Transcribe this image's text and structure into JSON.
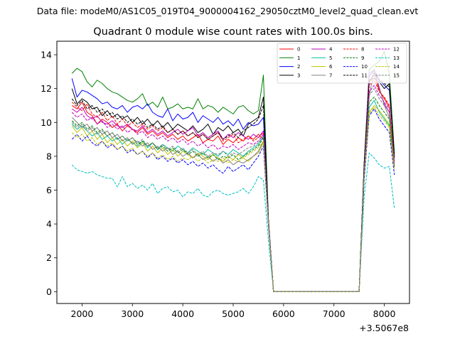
{
  "chart_data": {
    "type": "line",
    "suptitle": "Data file: modeM0/AS1C05_019T04_9000004162_29050cztM0_level2_quad_clean.evt",
    "title": "Quadrant 0 module wise count rates with 100.0s bins.",
    "xlabel": "",
    "ylabel": "",
    "x_offset_label": "+3.5067e8",
    "xlim": [
      1500,
      8500
    ],
    "ylim": [
      -0.7,
      14.8
    ],
    "x_ticks": [
      2000,
      3000,
      4000,
      5000,
      6000,
      7000,
      8000
    ],
    "y_ticks": [
      0,
      2,
      4,
      6,
      8,
      10,
      12,
      14
    ],
    "legend_location": "upper right",
    "x": [
      1800,
      1900,
      2000,
      2100,
      2200,
      2300,
      2400,
      2500,
      2600,
      2700,
      2800,
      2900,
      3000,
      3100,
      3200,
      3300,
      3400,
      3500,
      3600,
      3700,
      3800,
      3900,
      4000,
      4100,
      4200,
      4300,
      4400,
      4500,
      4600,
      4700,
      4800,
      4900,
      5000,
      5100,
      5200,
      5300,
      5400,
      5500,
      5600,
      5700,
      5800,
      5900,
      6000,
      6100,
      6200,
      6300,
      6400,
      6500,
      6600,
      6700,
      6800,
      6900,
      7000,
      7100,
      7200,
      7300,
      7400,
      7500,
      7600,
      7700,
      7800,
      7900,
      8000,
      8100,
      8200
    ],
    "series": [
      {
        "name": "0",
        "color": "#ff0000",
        "dash": "solid",
        "values": [
          11.0,
          10.8,
          11.2,
          10.6,
          10.4,
          9.9,
          10.2,
          10.0,
          9.7,
          9.9,
          9.5,
          9.8,
          9.6,
          9.4,
          9.7,
          9.3,
          9.5,
          9.2,
          9.4,
          9.1,
          9.3,
          9.0,
          9.2,
          8.9,
          9.1,
          9.3,
          8.8,
          9.0,
          8.9,
          9.2,
          8.7,
          9.0,
          8.8,
          9.1,
          8.9,
          9.2,
          9.0,
          9.3,
          9.0,
          4.2,
          0.0,
          0.0,
          0.0,
          0.0,
          0.0,
          0.0,
          0.0,
          0.0,
          0.0,
          0.0,
          0.0,
          0.0,
          0.0,
          0.0,
          0.0,
          0.0,
          0.0,
          0.0,
          7.2,
          12.4,
          12.8,
          11.9,
          11.4,
          10.9,
          7.7
        ]
      },
      {
        "name": "1",
        "color": "#008000",
        "dash": "solid",
        "values": [
          12.9,
          13.2,
          13.0,
          12.4,
          12.1,
          12.5,
          12.3,
          12.0,
          11.8,
          11.7,
          11.5,
          11.3,
          11.2,
          11.4,
          11.7,
          11.0,
          11.2,
          10.9,
          11.5,
          10.8,
          10.9,
          11.1,
          10.8,
          10.9,
          10.8,
          11.4,
          10.8,
          11.0,
          10.9,
          10.6,
          10.9,
          10.7,
          10.5,
          10.9,
          11.0,
          10.7,
          10.5,
          10.7,
          12.8,
          4.2,
          0.0,
          0.0,
          0.0,
          0.0,
          0.0,
          0.0,
          0.0,
          0.0,
          0.0,
          0.0,
          0.0,
          0.0,
          0.0,
          0.0,
          0.0,
          0.0,
          0.0,
          0.0,
          7.6,
          13.1,
          13.4,
          13.6,
          14.2,
          12.9,
          8.2
        ]
      },
      {
        "name": "2",
        "color": "#0000ff",
        "dash": "solid",
        "values": [
          12.6,
          11.5,
          11.9,
          11.8,
          11.6,
          11.4,
          11.1,
          11.2,
          10.9,
          10.8,
          11.0,
          10.6,
          10.9,
          11.0,
          10.8,
          11.1,
          10.6,
          10.4,
          10.3,
          10.8,
          10.1,
          10.5,
          10.2,
          10.3,
          10.6,
          10.0,
          10.4,
          10.2,
          10.0,
          10.3,
          9.9,
          10.1,
          9.8,
          10.2,
          9.6,
          10.0,
          9.8,
          9.9,
          10.3,
          4.1,
          0.0,
          0.0,
          0.0,
          0.0,
          0.0,
          0.0,
          0.0,
          0.0,
          0.0,
          0.0,
          0.0,
          0.0,
          0.0,
          0.0,
          0.0,
          0.0,
          0.0,
          0.0,
          7.4,
          12.7,
          13.1,
          12.5,
          12.2,
          11.9,
          8.0
        ]
      },
      {
        "name": "3",
        "color": "#000000",
        "dash": "solid",
        "values": [
          12.0,
          11.1,
          11.4,
          11.2,
          10.8,
          10.9,
          10.4,
          10.7,
          10.3,
          10.5,
          10.2,
          10.4,
          10.0,
          10.3,
          9.9,
          10.2,
          9.8,
          10.1,
          9.7,
          10.0,
          9.6,
          9.9,
          9.7,
          9.5,
          9.8,
          9.4,
          9.6,
          9.9,
          9.3,
          9.7,
          9.5,
          9.8,
          9.4,
          9.6,
          9.2,
          9.9,
          10.1,
          10.3,
          11.5,
          4.3,
          0.0,
          0.0,
          0.0,
          0.0,
          0.0,
          0.0,
          0.0,
          0.0,
          0.0,
          0.0,
          0.0,
          0.0,
          0.0,
          0.0,
          0.0,
          0.0,
          0.0,
          0.0,
          7.5,
          12.5,
          12.6,
          12.4,
          12.0,
          12.3,
          7.9
        ]
      },
      {
        "name": "4",
        "color": "#bf00bf",
        "dash": "solid",
        "values": [
          10.8,
          10.6,
          10.9,
          10.4,
          10.2,
          10.4,
          10.0,
          9.9,
          10.1,
          9.8,
          9.7,
          9.9,
          9.6,
          9.5,
          9.8,
          9.4,
          9.6,
          9.3,
          9.5,
          9.2,
          9.4,
          9.6,
          9.3,
          9.5,
          9.7,
          9.2,
          9.4,
          9.1,
          9.3,
          9.5,
          9.0,
          9.3,
          9.1,
          9.4,
          9.2,
          9.0,
          9.3,
          9.1,
          9.5,
          4.2,
          0.0,
          0.0,
          0.0,
          0.0,
          0.0,
          0.0,
          0.0,
          0.0,
          0.0,
          0.0,
          0.0,
          0.0,
          0.0,
          0.0,
          0.0,
          0.0,
          0.0,
          0.0,
          7.1,
          12.9,
          13.1,
          12.0,
          11.1,
          10.6,
          7.8
        ]
      },
      {
        "name": "5",
        "color": "#00bfa0",
        "dash": "solid",
        "values": [
          9.9,
          9.6,
          9.8,
          9.5,
          9.2,
          9.4,
          9.0,
          9.2,
          8.9,
          9.1,
          8.7,
          9.0,
          8.8,
          8.6,
          8.9,
          8.5,
          8.8,
          8.4,
          8.7,
          8.5,
          8.3,
          8.6,
          8.4,
          8.2,
          8.5,
          8.3,
          8.1,
          8.4,
          8.2,
          8.0,
          8.3,
          8.1,
          8.4,
          8.2,
          8.0,
          8.3,
          8.5,
          8.7,
          9.2,
          4.0,
          0.0,
          0.0,
          0.0,
          0.0,
          0.0,
          0.0,
          0.0,
          0.0,
          0.0,
          0.0,
          0.0,
          0.0,
          0.0,
          0.0,
          0.0,
          0.0,
          0.0,
          0.0,
          6.8,
          10.9,
          11.3,
          10.6,
          10.2,
          9.8,
          7.4
        ]
      },
      {
        "name": "6",
        "color": "#bfbf00",
        "dash": "solid",
        "values": [
          9.8,
          9.4,
          9.7,
          9.2,
          9.5,
          9.0,
          9.3,
          8.8,
          9.1,
          8.7,
          9.0,
          8.6,
          8.9,
          8.5,
          8.8,
          8.3,
          8.6,
          8.2,
          8.5,
          8.1,
          8.4,
          8.0,
          8.3,
          8.1,
          7.9,
          8.2,
          8.0,
          7.8,
          8.1,
          7.9,
          7.7,
          8.0,
          7.8,
          8.1,
          7.9,
          7.7,
          8.0,
          8.2,
          8.8,
          4.0,
          0.0,
          0.0,
          0.0,
          0.0,
          0.0,
          0.0,
          0.0,
          0.0,
          0.0,
          0.0,
          0.0,
          0.0,
          0.0,
          0.0,
          0.0,
          0.0,
          0.0,
          0.0,
          6.9,
          10.6,
          11.0,
          10.7,
          10.3,
          9.9,
          7.3
        ]
      },
      {
        "name": "7",
        "color": "#808080",
        "dash": "solid",
        "values": [
          10.3,
          10.0,
          9.7,
          9.9,
          9.5,
          9.7,
          9.3,
          9.5,
          9.1,
          9.3,
          8.9,
          9.1,
          8.7,
          8.9,
          8.6,
          8.8,
          8.4,
          8.6,
          8.3,
          8.5,
          8.1,
          8.3,
          8.0,
          8.2,
          7.9,
          8.1,
          7.8,
          8.0,
          7.7,
          7.9,
          7.6,
          7.8,
          7.5,
          7.7,
          7.6,
          7.8,
          8.0,
          8.3,
          8.9,
          4.0,
          0.0,
          0.0,
          0.0,
          0.0,
          0.0,
          0.0,
          0.0,
          0.0,
          0.0,
          0.0,
          0.0,
          0.0,
          0.0,
          0.0,
          0.0,
          0.0,
          0.0,
          0.0,
          7.0,
          11.5,
          13.2,
          12.1,
          11.0,
          10.3,
          7.5
        ]
      },
      {
        "name": "8",
        "color": "#ff0000",
        "dash": "dashed",
        "values": [
          11.2,
          10.9,
          10.7,
          11.1,
          10.5,
          10.3,
          10.6,
          10.1,
          10.4,
          9.9,
          10.2,
          9.8,
          10.0,
          9.7,
          9.9,
          9.6,
          9.8,
          9.5,
          9.7,
          9.4,
          9.6,
          9.3,
          9.5,
          9.2,
          9.4,
          9.1,
          9.3,
          9.0,
          9.2,
          9.4,
          8.9,
          9.1,
          9.3,
          8.8,
          9.0,
          9.2,
          8.9,
          9.1,
          9.4,
          4.1,
          0.0,
          0.0,
          0.0,
          0.0,
          0.0,
          0.0,
          0.0,
          0.0,
          0.0,
          0.0,
          0.0,
          0.0,
          0.0,
          0.0,
          0.0,
          0.0,
          0.0,
          0.0,
          7.3,
          12.2,
          12.5,
          11.8,
          11.5,
          11.0,
          7.6
        ]
      },
      {
        "name": "9",
        "color": "#008000",
        "dash": "dashed",
        "values": [
          10.1,
          9.8,
          10.0,
          9.6,
          9.8,
          9.4,
          9.6,
          9.2,
          9.4,
          9.0,
          9.2,
          8.9,
          9.1,
          8.7,
          8.9,
          8.6,
          8.8,
          8.4,
          8.6,
          8.3,
          8.5,
          8.2,
          8.4,
          8.1,
          8.3,
          8.0,
          8.2,
          7.9,
          8.1,
          7.8,
          8.0,
          7.9,
          8.1,
          7.8,
          8.0,
          8.2,
          8.4,
          8.6,
          9.1,
          4.0,
          0.0,
          0.0,
          0.0,
          0.0,
          0.0,
          0.0,
          0.0,
          0.0,
          0.0,
          0.0,
          0.0,
          0.0,
          0.0,
          0.0,
          0.0,
          0.0,
          0.0,
          0.0,
          6.9,
          11.2,
          11.5,
          11.0,
          10.6,
          10.2,
          7.4
        ]
      },
      {
        "name": "10",
        "color": "#0000ff",
        "dash": "dashed",
        "values": [
          9.0,
          9.3,
          8.9,
          9.2,
          8.8,
          8.6,
          8.9,
          8.5,
          8.7,
          8.4,
          8.6,
          8.2,
          8.4,
          8.1,
          8.3,
          7.9,
          8.2,
          7.8,
          8.0,
          7.7,
          7.9,
          7.6,
          7.8,
          7.5,
          7.7,
          7.4,
          7.6,
          7.3,
          7.5,
          7.2,
          7.0,
          7.4,
          7.1,
          7.3,
          7.5,
          7.2,
          7.6,
          8.0,
          8.6,
          3.9,
          0.0,
          0.0,
          0.0,
          0.0,
          0.0,
          0.0,
          0.0,
          0.0,
          0.0,
          0.0,
          0.0,
          0.0,
          0.0,
          0.0,
          0.0,
          0.0,
          0.0,
          0.0,
          6.6,
          10.4,
          10.8,
          10.2,
          9.8,
          9.4,
          6.9
        ]
      },
      {
        "name": "11",
        "color": "#000000",
        "dash": "dashed",
        "values": [
          11.4,
          11.0,
          11.3,
          10.8,
          11.0,
          10.6,
          10.8,
          10.4,
          10.6,
          10.2,
          10.4,
          10.0,
          10.2,
          9.9,
          10.1,
          9.7,
          9.9,
          9.6,
          9.8,
          9.4,
          9.6,
          9.3,
          9.5,
          9.2,
          9.4,
          9.1,
          9.3,
          9.0,
          9.2,
          9.4,
          9.0,
          9.2,
          9.4,
          9.1,
          9.5,
          9.7,
          9.9,
          10.2,
          11.0,
          4.2,
          0.0,
          0.0,
          0.0,
          0.0,
          0.0,
          0.0,
          0.0,
          0.0,
          0.0,
          0.0,
          0.0,
          0.0,
          0.0,
          0.0,
          0.0,
          0.0,
          0.0,
          0.0,
          7.6,
          12.4,
          12.9,
          12.5,
          12.3,
          12.1,
          8.0
        ]
      },
      {
        "name": "12",
        "color": "#bf00bf",
        "dash": "dashed",
        "values": [
          10.6,
          10.3,
          10.5,
          10.1,
          10.3,
          9.9,
          10.1,
          9.7,
          9.9,
          9.6,
          9.8,
          9.4,
          9.6,
          9.3,
          9.5,
          9.1,
          9.3,
          9.0,
          9.2,
          8.9,
          9.1,
          8.8,
          9.0,
          8.7,
          8.9,
          8.6,
          8.8,
          8.5,
          8.7,
          8.4,
          8.6,
          8.5,
          8.7,
          8.4,
          8.6,
          8.8,
          8.7,
          8.9,
          9.3,
          4.1,
          0.0,
          0.0,
          0.0,
          0.0,
          0.0,
          0.0,
          0.0,
          0.0,
          0.0,
          0.0,
          0.0,
          0.0,
          0.0,
          0.0,
          0.0,
          0.0,
          0.0,
          0.0,
          7.0,
          11.8,
          12.2,
          11.6,
          11.2,
          10.8,
          7.5
        ]
      },
      {
        "name": "13",
        "color": "#00bfbf",
        "dash": "dashed",
        "values": [
          7.5,
          7.2,
          7.1,
          7.0,
          7.1,
          6.9,
          6.8,
          6.7,
          6.7,
          6.2,
          6.8,
          6.2,
          6.4,
          6.1,
          6.3,
          6.0,
          6.4,
          5.8,
          6.1,
          6.2,
          5.9,
          6.0,
          5.6,
          5.9,
          5.8,
          6.1,
          5.7,
          5.6,
          5.9,
          6.0,
          5.8,
          5.7,
          5.8,
          5.9,
          6.1,
          5.8,
          6.2,
          6.8,
          6.6,
          3.0,
          0.0,
          0.0,
          0.0,
          0.0,
          0.0,
          0.0,
          0.0,
          0.0,
          0.0,
          0.0,
          0.0,
          0.0,
          0.0,
          0.0,
          0.0,
          0.0,
          0.0,
          0.0,
          5.6,
          8.2,
          7.9,
          7.5,
          7.3,
          7.4,
          4.9
        ]
      },
      {
        "name": "14",
        "color": "#bfbf00",
        "dash": "dashed",
        "values": [
          9.4,
          9.1,
          9.3,
          8.9,
          9.1,
          8.7,
          8.9,
          8.6,
          8.8,
          8.4,
          8.6,
          8.3,
          8.5,
          8.1,
          8.3,
          8.0,
          8.2,
          7.9,
          8.1,
          7.8,
          8.0,
          7.7,
          7.9,
          7.8,
          8.0,
          7.7,
          7.9,
          7.6,
          7.8,
          7.7,
          7.9,
          7.6,
          7.8,
          7.7,
          7.9,
          8.1,
          8.3,
          8.5,
          8.9,
          4.0,
          0.0,
          0.0,
          0.0,
          0.0,
          0.0,
          0.0,
          0.0,
          0.0,
          0.0,
          0.0,
          0.0,
          0.0,
          0.0,
          0.0,
          0.0,
          0.0,
          0.0,
          0.0,
          6.8,
          10.5,
          10.9,
          10.4,
          10.1,
          9.7,
          7.2
        ]
      },
      {
        "name": "15",
        "color": "#808080",
        "dash": "dashed",
        "values": [
          10.0,
          9.7,
          9.9,
          9.5,
          9.7,
          9.3,
          9.5,
          9.2,
          9.4,
          9.0,
          9.2,
          8.9,
          9.1,
          8.8,
          9.0,
          8.6,
          8.8,
          8.5,
          8.7,
          8.4,
          8.6,
          8.3,
          8.5,
          8.2,
          8.4,
          8.1,
          8.3,
          8.0,
          8.2,
          8.1,
          8.3,
          8.0,
          8.2,
          8.1,
          8.3,
          8.5,
          8.6,
          8.8,
          9.2,
          4.1,
          0.0,
          0.0,
          0.0,
          0.0,
          0.0,
          0.0,
          0.0,
          0.0,
          0.0,
          0.0,
          0.0,
          0.0,
          0.0,
          0.0,
          0.0,
          0.0,
          0.0,
          0.0,
          7.1,
          11.6,
          12.0,
          11.4,
          11.0,
          10.6,
          7.6
        ]
      }
    ]
  }
}
